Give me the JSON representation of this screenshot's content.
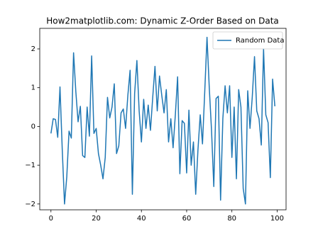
{
  "chart_data": {
    "type": "line",
    "title": "How2matplotlib.com: Dynamic Z-Order Based on Data",
    "x": [
      0,
      1,
      2,
      3,
      4,
      5,
      6,
      7,
      8,
      9,
      10,
      11,
      12,
      13,
      14,
      15,
      16,
      17,
      18,
      19,
      20,
      21,
      22,
      23,
      24,
      25,
      26,
      27,
      28,
      29,
      30,
      31,
      32,
      33,
      34,
      35,
      36,
      37,
      38,
      39,
      40,
      41,
      42,
      43,
      44,
      45,
      46,
      47,
      48,
      49,
      50,
      51,
      52,
      53,
      54,
      55,
      56,
      57,
      58,
      59,
      60,
      61,
      62,
      63,
      64,
      65,
      66,
      67,
      68,
      69,
      70,
      71,
      72,
      73,
      74,
      75,
      76,
      77,
      78,
      79,
      80,
      81,
      82,
      83,
      84,
      85,
      86,
      87,
      88,
      89,
      90,
      91,
      92,
      93,
      94,
      95,
      96,
      97,
      98,
      99
    ],
    "series": [
      {
        "name": "Random Data",
        "color": "#1f77b4",
        "values": [
          -0.18,
          0.2,
          0.18,
          -0.28,
          1.02,
          -0.6,
          -2.0,
          -1.3,
          -0.12,
          -0.3,
          1.9,
          0.9,
          0.12,
          0.52,
          -0.75,
          -0.8,
          0.5,
          -0.25,
          1.82,
          -0.18,
          -0.05,
          -0.7,
          -1.0,
          -1.35,
          -0.8,
          0.75,
          0.22,
          0.5,
          1.1,
          -0.7,
          -0.5,
          0.35,
          0.45,
          -0.05,
          0.8,
          1.45,
          -1.75,
          0.85,
          1.7,
          0.4,
          -0.4,
          0.7,
          -0.05,
          0.55,
          -0.1,
          0.75,
          1.55,
          0.4,
          1.3,
          0.8,
          0.35,
          0.95,
          -0.4,
          0.2,
          -0.55,
          0.3,
          1.28,
          -1.22,
          0.15,
          0.08,
          -1.2,
          0.42,
          -1.0,
          -0.4,
          -1.75,
          -0.6,
          0.3,
          -0.45,
          0.9,
          2.3,
          1.0,
          -0.1,
          -1.55,
          0.72,
          0.78,
          -1.9,
          0.2,
          1.05,
          0.35,
          1.05,
          -0.8,
          0.5,
          -1.35,
          0.95,
          0.5,
          -1.6,
          -2.0,
          0.92,
          -0.05,
          0.75,
          1.8,
          0.4,
          0.2,
          -0.48,
          2.0,
          0.3,
          0.1,
          -1.32,
          1.22,
          0.52
        ]
      }
    ],
    "xlim": [
      -4.95,
      103.95
    ],
    "xticks": [
      0,
      20,
      40,
      60,
      80,
      100
    ],
    "ylim": [
      -2.15,
      2.53
    ],
    "yticks": [
      {
        "value": -2,
        "label": "−2"
      },
      {
        "value": -1,
        "label": "−1"
      },
      0,
      1,
      2
    ],
    "legend": "upper right"
  }
}
